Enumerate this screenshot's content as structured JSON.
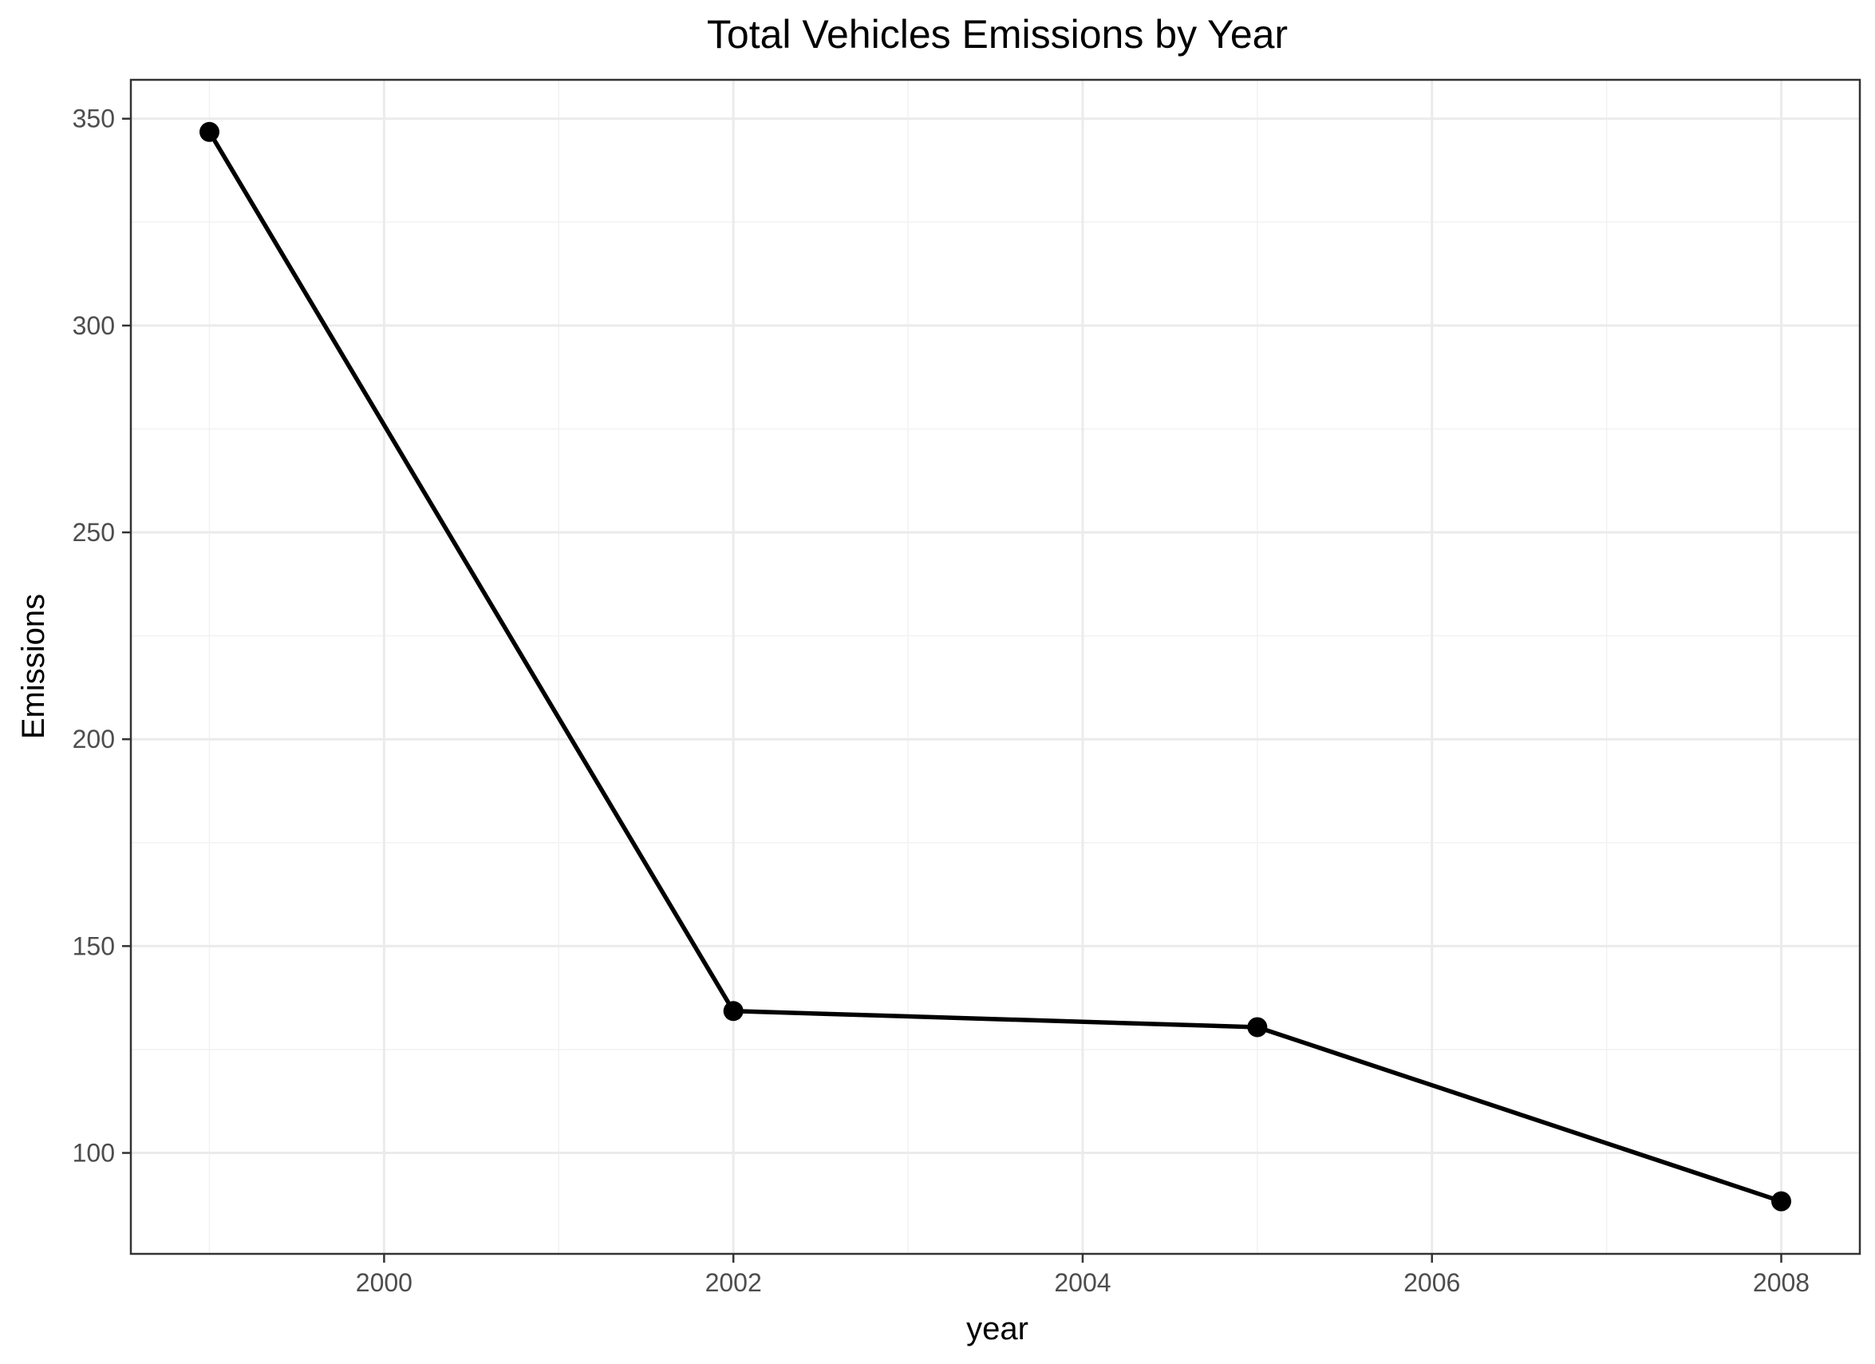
{
  "chart_data": {
    "type": "line",
    "title": "Total Vehicles Emissions by Year",
    "xlabel": "year",
    "ylabel": "Emissions",
    "x": [
      1999,
      2002,
      2005,
      2008
    ],
    "series": [
      {
        "values": [
          346.8,
          134.3,
          130.4,
          88.3
        ],
        "color": "#000000"
      }
    ],
    "xlim": [
      1998.55,
      2008.45
    ],
    "ylim": [
      75.6,
      359.4
    ],
    "x_ticks": [
      2000,
      2002,
      2004,
      2006,
      2008
    ],
    "x_tick_labels": [
      "2000",
      "2002",
      "2004",
      "2006",
      "2008"
    ],
    "y_ticks": [
      100,
      150,
      200,
      250,
      300,
      350
    ],
    "y_tick_labels": [
      "100",
      "150",
      "200",
      "250",
      "300",
      "350"
    ],
    "x_minor_ticks": [
      1999,
      2001,
      2003,
      2005,
      2007
    ],
    "y_minor_ticks": [
      125,
      175,
      225,
      275,
      325
    ],
    "grid": true,
    "legend": "none",
    "theme": "bw",
    "colors": {
      "background": "#ffffff",
      "grid_major": "#ebebeb",
      "grid_minor": "#f2f2f2",
      "border": "#333333",
      "tick_text": "#4d4d4d",
      "line": "#000000"
    }
  }
}
